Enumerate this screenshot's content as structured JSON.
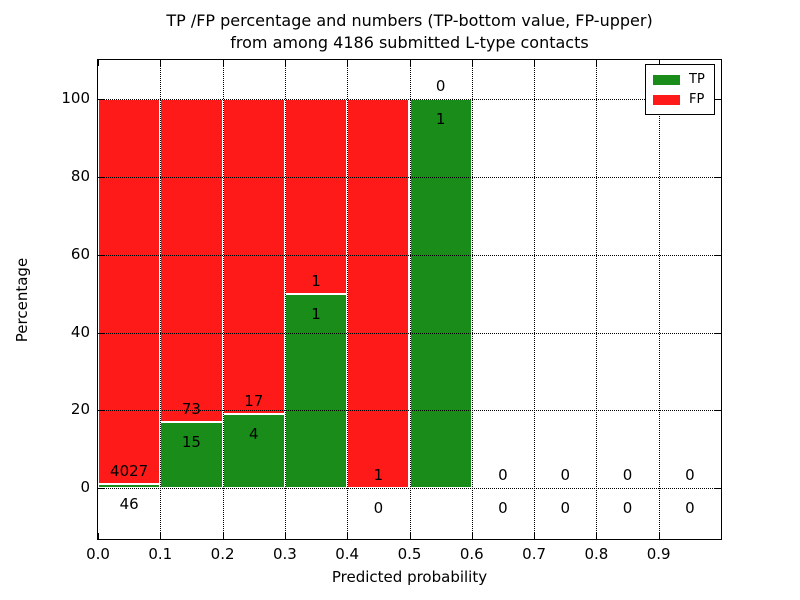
{
  "figure": {
    "title_line1": "TP /FP percentage and numbers (TP-bottom value, FP-upper)",
    "title_line2": "from among 4186 submitted L-type contacts"
  },
  "chart_data": {
    "type": "bar",
    "stacked": true,
    "title": "TP /FP percentage and numbers (TP-bottom value, FP-upper)\nfrom among 4186 submitted L-type contacts",
    "xlabel": "Predicted probability",
    "ylabel": "Percentage",
    "total_submitted": 4186,
    "xlim": [
      0.0,
      1.0
    ],
    "ylim": [
      -13,
      110
    ],
    "bin_width": 0.1,
    "bin_starts": [
      0.0,
      0.1,
      0.2,
      0.3,
      0.4,
      0.5,
      0.6,
      0.7,
      0.8,
      0.9
    ],
    "categories": [
      "0.0-0.1",
      "0.1-0.2",
      "0.2-0.3",
      "0.3-0.4",
      "0.4-0.5",
      "0.5-0.6",
      "0.6-0.7",
      "0.7-0.8",
      "0.8-0.9",
      "0.9-1.0"
    ],
    "xticks": [
      0.0,
      0.1,
      0.2,
      0.3,
      0.4,
      0.5,
      0.6,
      0.7,
      0.8,
      0.9
    ],
    "xtick_labels": [
      "0.0",
      "0.1",
      "0.2",
      "0.3",
      "0.4",
      "0.5",
      "0.6",
      "0.7",
      "0.8",
      "0.9"
    ],
    "yticks": [
      0,
      20,
      40,
      60,
      80,
      100
    ],
    "ytick_labels": [
      "0",
      "20",
      "40",
      "60",
      "80",
      "100"
    ],
    "grid": true,
    "grid_style": "dotted",
    "series": [
      {
        "name": "TP",
        "color": "#1a8c1a",
        "counts": [
          46,
          15,
          4,
          1,
          0,
          1,
          0,
          0,
          0,
          0
        ],
        "percentages": [
          1.13,
          17.05,
          19.05,
          50.0,
          0.0,
          100.0,
          0.0,
          0.0,
          0.0,
          0.0
        ]
      },
      {
        "name": "FP",
        "color": "#ff1a1a",
        "counts": [
          4027,
          73,
          17,
          1,
          1,
          0,
          0,
          0,
          0,
          0
        ],
        "percentages": [
          98.87,
          82.95,
          80.95,
          50.0,
          100.0,
          0.0,
          0.0,
          0.0,
          0.0,
          0.0
        ]
      }
    ],
    "legend": {
      "position": "upper right",
      "entries": [
        {
          "label": "TP",
          "color": "#1a8c1a"
        },
        {
          "label": "FP",
          "color": "#ff1a1a"
        }
      ]
    }
  }
}
